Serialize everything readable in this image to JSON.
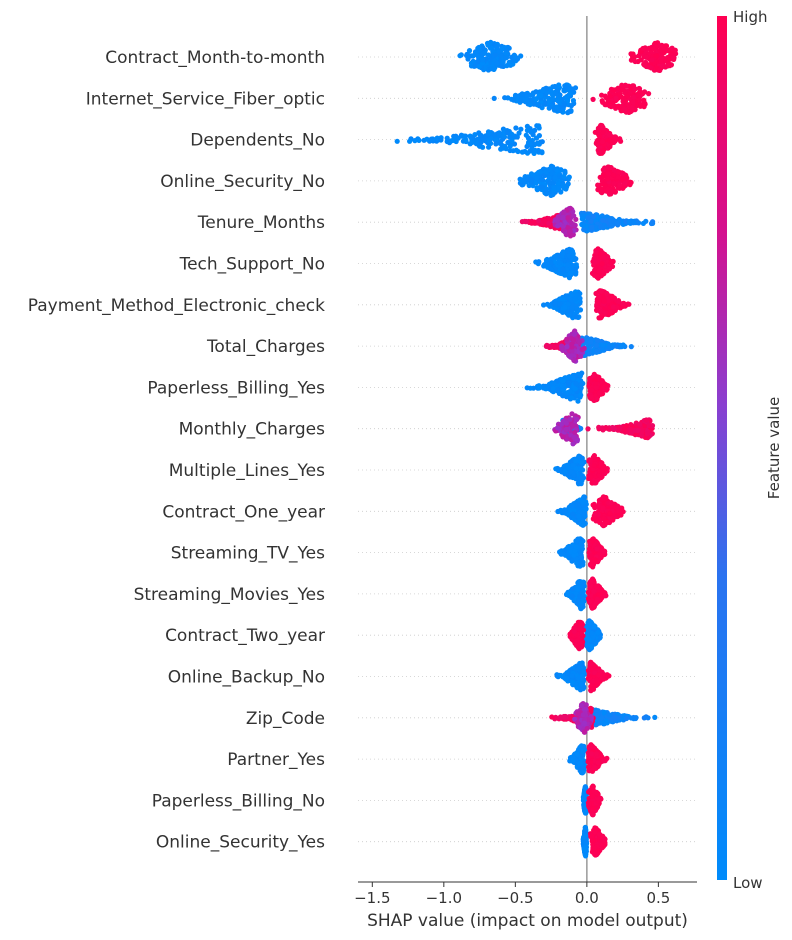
{
  "chart_data": {
    "type": "scatter",
    "xlabel": "SHAP value (impact on model output)",
    "x_ticks": [
      -1.5,
      -1.0,
      -0.5,
      0.0,
      0.5
    ],
    "x_tick_labels": [
      "−1.5",
      "−1.0",
      "−0.5",
      "0.0",
      "0.5"
    ],
    "xlim": [
      -1.6,
      0.77
    ],
    "colorbar": {
      "label": "Feature value",
      "high_label": "High",
      "low_label": "Low",
      "low_color": "#008bfb",
      "high_color": "#ff0052"
    },
    "features": [
      {
        "name": "Contract_Month-to-month",
        "low_range": [
          -0.95,
          -0.4
        ],
        "high_range": [
          0.27,
          0.68
        ],
        "low_peak": -0.67,
        "high_peak": 0.5,
        "mode": "split"
      },
      {
        "name": "Internet_Service_Fiber_optic",
        "low_range": [
          -0.75,
          -0.05
        ],
        "high_range": [
          0.02,
          0.47
        ],
        "low_peak": -0.15,
        "high_peak": 0.28,
        "mode": "split"
      },
      {
        "name": "Dependents_No",
        "low_range": [
          -1.5,
          -0.25
        ],
        "high_range": [
          0.05,
          0.25
        ],
        "low_peak": -0.35,
        "high_peak": 0.1,
        "mode": "split"
      },
      {
        "name": "Online_Security_No",
        "low_range": [
          -0.52,
          -0.08
        ],
        "high_range": [
          0.05,
          0.38
        ],
        "low_peak": -0.25,
        "high_peak": 0.15,
        "mode": "split"
      },
      {
        "name": "Tenure_Months",
        "low_range": [
          -0.05,
          0.55
        ],
        "high_range": [
          -0.55,
          -0.1
        ],
        "mid_range": [
          -0.25,
          -0.05
        ],
        "peak": -0.12,
        "mode": "mixed"
      },
      {
        "name": "Tech_Support_No",
        "low_range": [
          -0.4,
          -0.05
        ],
        "high_range": [
          0.02,
          0.22
        ],
        "low_peak": -0.12,
        "high_peak": 0.08,
        "mode": "split"
      },
      {
        "name": "Payment_Method_Electronic_check",
        "low_range": [
          -0.32,
          -0.03
        ],
        "high_range": [
          0.05,
          0.33
        ],
        "low_peak": -0.08,
        "high_peak": 0.1,
        "mode": "split"
      },
      {
        "name": "Total_Charges",
        "low_range": [
          -0.05,
          0.38
        ],
        "high_range": [
          -0.33,
          -0.05
        ],
        "mid_range": [
          -0.2,
          0.0
        ],
        "peak": -0.08,
        "mode": "mixed"
      },
      {
        "name": "Paperless_Billing_Yes",
        "low_range": [
          -0.48,
          -0.02
        ],
        "high_range": [
          0.0,
          0.17
        ],
        "low_peak": -0.05,
        "high_peak": 0.05,
        "mode": "split"
      },
      {
        "name": "Monthly_Charges",
        "low_range": [
          -0.18,
          -0.02
        ],
        "high_range": [
          0.0,
          0.47
        ],
        "mid_range": [
          -0.25,
          -0.03
        ],
        "peak": -0.1,
        "mode": "mixed"
      },
      {
        "name": "Multiple_Lines_Yes",
        "low_range": [
          -0.25,
          -0.01
        ],
        "high_range": [
          0.0,
          0.17
        ],
        "low_peak": -0.05,
        "high_peak": 0.05,
        "mode": "split"
      },
      {
        "name": "Contract_One_year",
        "low_range": [
          -0.24,
          0.0
        ],
        "high_range": [
          0.02,
          0.28
        ],
        "low_peak": -0.02,
        "high_peak": 0.12,
        "mode": "split"
      },
      {
        "name": "Streaming_TV_Yes",
        "low_range": [
          -0.22,
          -0.01
        ],
        "high_range": [
          0.0,
          0.15
        ],
        "low_peak": -0.05,
        "high_peak": 0.04,
        "mode": "split"
      },
      {
        "name": "Streaming_Movies_Yes",
        "low_range": [
          -0.16,
          -0.01
        ],
        "high_range": [
          0.0,
          0.15
        ],
        "low_peak": -0.04,
        "high_peak": 0.04,
        "mode": "split"
      },
      {
        "name": "Contract_Two_year",
        "low_range": [
          -0.02,
          0.12
        ],
        "high_range": [
          -0.14,
          -0.02
        ],
        "low_peak": 0.02,
        "high_peak": -0.05,
        "mode": "split"
      },
      {
        "name": "Online_Backup_No",
        "low_range": [
          -0.25,
          -0.01
        ],
        "high_range": [
          0.0,
          0.18
        ],
        "low_peak": -0.03,
        "high_peak": 0.03,
        "mode": "split"
      },
      {
        "name": "Zip_Code",
        "low_range": [
          -0.05,
          0.57
        ],
        "high_range": [
          -0.27,
          0.05
        ],
        "mid_range": [
          -0.1,
          0.05
        ],
        "peak": -0.02,
        "mode": "mixed"
      },
      {
        "name": "Partner_Yes",
        "low_range": [
          -0.14,
          -0.01
        ],
        "high_range": [
          0.0,
          0.15
        ],
        "low_peak": -0.03,
        "high_peak": 0.03,
        "mode": "split"
      },
      {
        "name": "Paperless_Billing_No",
        "low_range": [
          -0.03,
          0.0
        ],
        "high_range": [
          0.0,
          0.11
        ],
        "low_peak": -0.01,
        "high_peak": 0.04,
        "mode": "split"
      },
      {
        "name": "Online_Security_Yes",
        "low_range": [
          -0.03,
          0.0
        ],
        "high_range": [
          0.02,
          0.15
        ],
        "low_peak": -0.01,
        "high_peak": 0.06,
        "mode": "split"
      }
    ]
  }
}
